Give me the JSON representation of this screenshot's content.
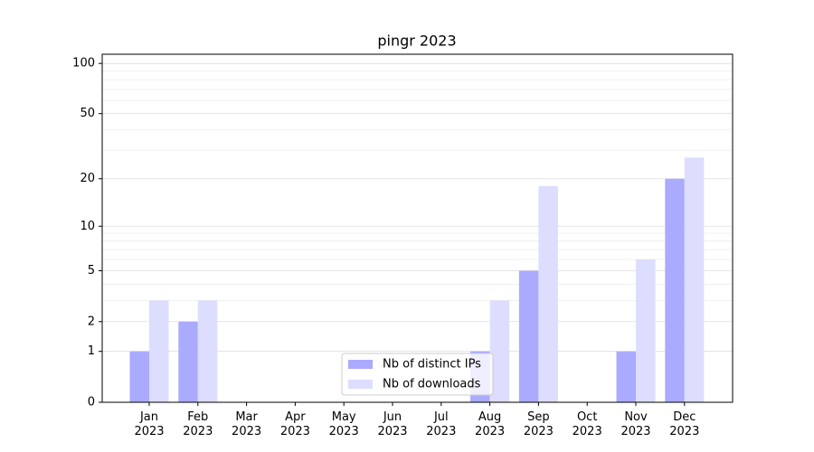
{
  "chart_data": {
    "type": "bar",
    "title": "pingr 2023",
    "categories": [
      "Jan\n2023",
      "Feb\n2023",
      "Mar\n2023",
      "Apr\n2023",
      "May\n2023",
      "Jun\n2023",
      "Jul\n2023",
      "Aug\n2023",
      "Sep\n2023",
      "Oct\n2023",
      "Nov\n2023",
      "Dec\n2023"
    ],
    "series": [
      {
        "name": "Nb of distinct IPs",
        "color": "#aaaaff",
        "values": [
          1,
          2,
          0,
          0,
          0,
          0,
          0,
          1,
          5,
          0,
          1,
          20
        ]
      },
      {
        "name": "Nb of downloads",
        "color": "#ddddff",
        "values": [
          3,
          3,
          0,
          0,
          0,
          0,
          0,
          3,
          18,
          0,
          6,
          27
        ]
      }
    ],
    "yscale": "log1p",
    "ylim": [
      0,
      113.5
    ],
    "yticks": [
      0,
      1,
      2,
      5,
      10,
      20,
      50,
      100
    ],
    "yminorticks": [
      3,
      4,
      6,
      7,
      8,
      9,
      30,
      40,
      60,
      70,
      80,
      90
    ],
    "grid": true,
    "legend": "lower center"
  }
}
